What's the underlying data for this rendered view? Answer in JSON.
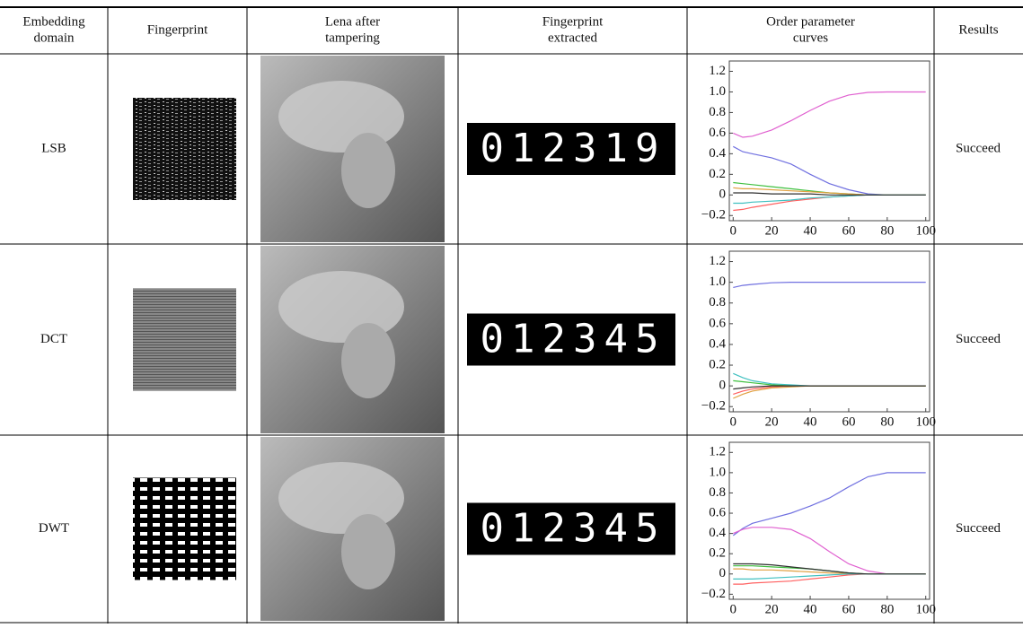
{
  "table": {
    "header": [
      [
        "Embedding",
        "domain"
      ],
      [
        "Fingerprint"
      ],
      [
        "Lena after",
        "tampering"
      ],
      [
        "Fingerprint",
        "extracted"
      ],
      [
        "Order parameter",
        "curves"
      ],
      [
        "Results"
      ]
    ],
    "rows": [
      {
        "domain": "LSB",
        "extracted": "012319",
        "result": "Succeed",
        "curves": {
          "type": "line",
          "xlim": [
            -2,
            102
          ],
          "ylim": [
            -0.25,
            1.3
          ],
          "xticks": [
            0,
            20,
            40,
            60,
            80,
            100
          ],
          "yticks": [
            {
              "value": -0.2,
              "label": "−0.2"
            },
            0,
            0.2,
            0.4,
            0.6,
            0.8,
            {
              "value": 1.0,
              "label": "1.0"
            },
            1.2
          ],
          "x": [
            0,
            5,
            10,
            20,
            30,
            40,
            50,
            60,
            70,
            80,
            90,
            100
          ],
          "series": [
            {
              "color": "#e060d0",
              "values": [
                0.6,
                0.56,
                0.57,
                0.63,
                0.72,
                0.82,
                0.91,
                0.97,
                0.995,
                1,
                1,
                1
              ]
            },
            {
              "color": "#7070e0",
              "values": [
                0.47,
                0.42,
                0.4,
                0.36,
                0.3,
                0.2,
                0.11,
                0.05,
                0.01,
                0,
                0,
                0
              ]
            },
            {
              "color": "#40c040",
              "values": [
                0.12,
                0.11,
                0.1,
                0.08,
                0.06,
                0.04,
                0.02,
                0.01,
                0,
                0,
                0,
                0
              ]
            },
            {
              "color": "#ff6060",
              "values": [
                -0.15,
                -0.14,
                -0.12,
                -0.09,
                -0.06,
                -0.04,
                -0.02,
                -0.01,
                0,
                0,
                0,
                0
              ]
            },
            {
              "color": "#e0a040",
              "values": [
                0.07,
                0.06,
                0.06,
                0.05,
                0.04,
                0.03,
                0.02,
                0.01,
                0,
                0,
                0,
                0
              ]
            },
            {
              "color": "#40c0c0",
              "values": [
                -0.08,
                -0.08,
                -0.07,
                -0.06,
                -0.05,
                -0.03,
                -0.02,
                -0.01,
                0,
                0,
                0,
                0
              ]
            },
            {
              "color": "#303030",
              "values": [
                0.02,
                0.02,
                0.02,
                0.01,
                0.01,
                0.01,
                0,
                0,
                0,
                0,
                0,
                0
              ]
            }
          ]
        }
      },
      {
        "domain": "DCT",
        "extracted": "012345",
        "result": "Succeed",
        "curves": {
          "type": "line",
          "xlim": [
            -2,
            102
          ],
          "ylim": [
            -0.25,
            1.3
          ],
          "xticks": [
            0,
            20,
            40,
            60,
            80,
            100
          ],
          "yticks": [
            {
              "value": -0.2,
              "label": "−0.2"
            },
            0,
            0.2,
            0.4,
            0.6,
            0.8,
            {
              "value": 1.0,
              "label": "1.0"
            },
            1.2
          ],
          "x": [
            0,
            5,
            10,
            20,
            30,
            40,
            50,
            60,
            70,
            80,
            90,
            100
          ],
          "series": [
            {
              "color": "#7070e0",
              "values": [
                0.95,
                0.97,
                0.98,
                0.995,
                1,
                1,
                1,
                1,
                1,
                1,
                1,
                1
              ]
            },
            {
              "color": "#40c0c0",
              "values": [
                0.12,
                0.08,
                0.05,
                0.02,
                0.01,
                0,
                0,
                0,
                0,
                0,
                0,
                0
              ]
            },
            {
              "color": "#ff6060",
              "values": [
                -0.08,
                -0.05,
                -0.03,
                -0.01,
                0,
                0,
                0,
                0,
                0,
                0,
                0,
                0
              ]
            },
            {
              "color": "#40c040",
              "values": [
                0.05,
                0.04,
                0.03,
                0.01,
                0,
                0,
                0,
                0,
                0,
                0,
                0,
                0
              ]
            },
            {
              "color": "#e0a040",
              "values": [
                -0.12,
                -0.08,
                -0.05,
                -0.02,
                -0.01,
                0,
                0,
                0,
                0,
                0,
                0,
                0
              ]
            },
            {
              "color": "#303030",
              "values": [
                -0.03,
                -0.02,
                -0.01,
                0,
                0,
                0,
                0,
                0,
                0,
                0,
                0,
                0
              ]
            }
          ]
        }
      },
      {
        "domain": "DWT",
        "extracted": "012345",
        "result": "Succeed",
        "curves": {
          "type": "line",
          "xlim": [
            -2,
            102
          ],
          "ylim": [
            -0.25,
            1.3
          ],
          "xticks": [
            0,
            20,
            40,
            60,
            80,
            100
          ],
          "yticks": [
            {
              "value": -0.2,
              "label": "−0.2"
            },
            0,
            0.2,
            0.4,
            0.6,
            0.8,
            {
              "value": 1.0,
              "label": "1.0"
            },
            1.2
          ],
          "x": [
            0,
            5,
            10,
            20,
            30,
            40,
            50,
            60,
            70,
            80,
            90,
            100
          ],
          "series": [
            {
              "color": "#7070e0",
              "values": [
                0.38,
                0.45,
                0.5,
                0.55,
                0.6,
                0.67,
                0.75,
                0.86,
                0.96,
                1,
                1,
                1
              ]
            },
            {
              "color": "#e060d0",
              "values": [
                0.4,
                0.44,
                0.46,
                0.46,
                0.44,
                0.35,
                0.22,
                0.1,
                0.03,
                0,
                0,
                0
              ]
            },
            {
              "color": "#40c040",
              "values": [
                0.08,
                0.08,
                0.08,
                0.07,
                0.06,
                0.05,
                0.03,
                0.01,
                0,
                0,
                0,
                0
              ]
            },
            {
              "color": "#ff6060",
              "values": [
                -0.1,
                -0.1,
                -0.09,
                -0.08,
                -0.07,
                -0.05,
                -0.03,
                -0.01,
                0,
                0,
                0,
                0
              ]
            },
            {
              "color": "#e0a040",
              "values": [
                0.05,
                0.05,
                0.04,
                0.04,
                0.03,
                0.02,
                0.01,
                0.005,
                0,
                0,
                0,
                0
              ]
            },
            {
              "color": "#40c0c0",
              "values": [
                -0.05,
                -0.05,
                -0.05,
                -0.04,
                -0.03,
                -0.02,
                -0.01,
                0,
                0,
                0,
                0,
                0
              ]
            },
            {
              "color": "#303030",
              "values": [
                0.1,
                0.1,
                0.1,
                0.09,
                0.07,
                0.05,
                0.03,
                0.01,
                0,
                0,
                0,
                0
              ]
            }
          ]
        }
      }
    ]
  }
}
